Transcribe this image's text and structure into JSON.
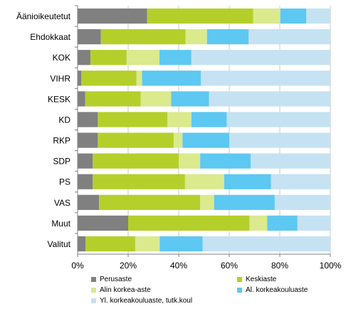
{
  "chart_data": {
    "type": "bar",
    "orientation": "horizontal",
    "stacked": true,
    "percent": true,
    "categories": [
      "Äänioikeutetut",
      "Ehdokkaat",
      "KOK",
      "VIHR",
      "KESK",
      "KD",
      "RKP",
      "SDP",
      "PS",
      "VAS",
      "Muut",
      "Valitut"
    ],
    "series": [
      {
        "name": "Perusaste",
        "color": "#808080",
        "values": [
          27.5,
          9.2,
          5.1,
          1.5,
          3.0,
          8.0,
          8.0,
          6.0,
          6.0,
          8.5,
          20.0,
          3.1
        ]
      },
      {
        "name": "Keskiaste",
        "color": "#b5cf2a",
        "values": [
          42.0,
          33.5,
          14.3,
          21.8,
          22.0,
          27.5,
          30.0,
          34.0,
          36.5,
          40.0,
          48.0,
          19.7
        ]
      },
      {
        "name": "Alin korkea-aste",
        "color": "#daea8d",
        "values": [
          10.7,
          8.5,
          13.0,
          2.2,
          12.0,
          9.5,
          3.5,
          8.5,
          15.5,
          5.5,
          7.0,
          9.7
        ]
      },
      {
        "name": "Al. korkeakouluaste",
        "color": "#5dc8f2",
        "values": [
          10.3,
          16.5,
          12.6,
          23.3,
          15.0,
          14.0,
          18.5,
          20.0,
          18.5,
          24.0,
          12.0,
          17.0
        ]
      },
      {
        "name": "Yl. korkeakouluaste, tutk.koul",
        "color": "#c5e2f3",
        "values": [
          9.5,
          32.3,
          55.0,
          51.2,
          48.0,
          41.0,
          40.0,
          31.5,
          23.5,
          22.0,
          13.0,
          50.5
        ]
      }
    ],
    "xlim": [
      0,
      100
    ],
    "xticks": [
      "0%",
      "20%",
      "40%",
      "60%",
      "80%",
      "100%"
    ],
    "grid": "vertical",
    "legend": "bottom"
  }
}
